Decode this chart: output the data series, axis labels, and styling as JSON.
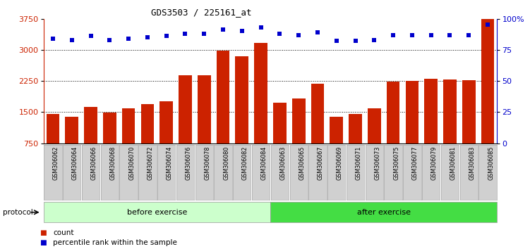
{
  "title": "GDS3503 / 225161_at",
  "categories": [
    "GSM306062",
    "GSM306064",
    "GSM306066",
    "GSM306068",
    "GSM306070",
    "GSM306072",
    "GSM306074",
    "GSM306076",
    "GSM306078",
    "GSM306080",
    "GSM306082",
    "GSM306084",
    "GSM306063",
    "GSM306065",
    "GSM306067",
    "GSM306069",
    "GSM306071",
    "GSM306073",
    "GSM306075",
    "GSM306077",
    "GSM306079",
    "GSM306081",
    "GSM306083",
    "GSM306085"
  ],
  "bar_values": [
    1450,
    1380,
    1620,
    1480,
    1590,
    1690,
    1760,
    2380,
    2380,
    2980,
    2840,
    3170,
    1730,
    1820,
    2180,
    1380,
    1460,
    1590,
    2230,
    2250,
    2310,
    2290,
    2260,
    3760
  ],
  "percentile_values": [
    84,
    83,
    86,
    83,
    84,
    85,
    86,
    88,
    88,
    91,
    90,
    93,
    88,
    87,
    89,
    82,
    82,
    83,
    87,
    87,
    87,
    87,
    87,
    95
  ],
  "bar_color": "#cc2200",
  "percentile_color": "#0000cc",
  "ylim_left": [
    750,
    3750
  ],
  "ylim_right": [
    0,
    100
  ],
  "yticks_left": [
    750,
    1500,
    2250,
    3000,
    3750
  ],
  "yticks_right": [
    0,
    25,
    50,
    75,
    100
  ],
  "grid_values": [
    1500,
    2250,
    3000
  ],
  "before_count": 12,
  "after_count": 12,
  "before_label": "before exercise",
  "after_label": "after exercise",
  "protocol_label": "protocol",
  "legend_count_label": "count",
  "legend_pct_label": "percentile rank within the sample",
  "before_color": "#ccffcc",
  "after_color": "#44dd44",
  "background_color": "#ffffff",
  "xtick_bg": "#d0d0d0",
  "bar_width": 0.7
}
